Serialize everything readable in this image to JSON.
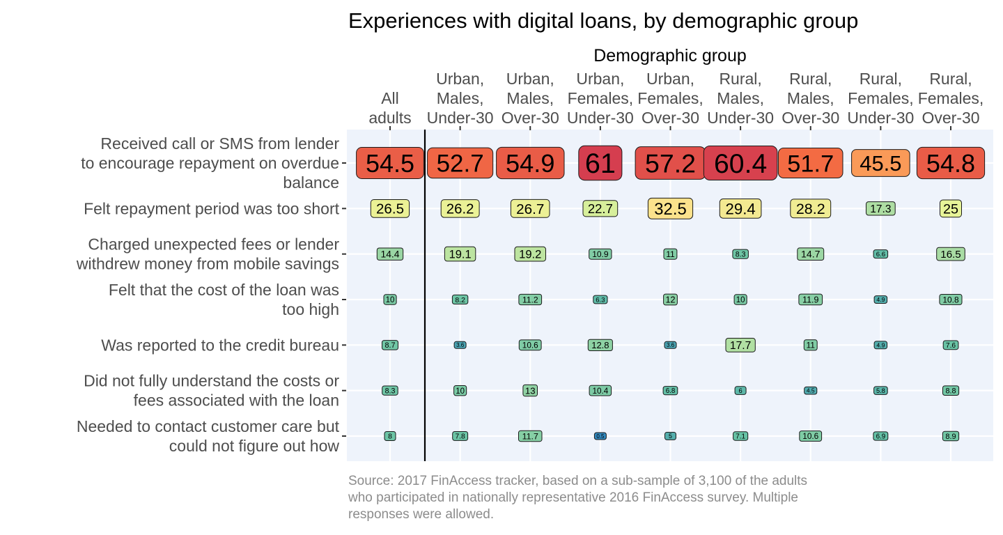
{
  "chart_data": {
    "type": "heatmap",
    "title": "Experiences with digital loans, by demographic group",
    "xlabel": "Demographic group",
    "ylabel": "",
    "categories": [
      [
        "All",
        "adults"
      ],
      [
        "Urban,",
        "Males,",
        "Under-30"
      ],
      [
        "Urban,",
        "Males,",
        "Over-30"
      ],
      [
        "Urban,",
        "Females,",
        "Under-30"
      ],
      [
        "Urban,",
        "Females,",
        "Over-30"
      ],
      [
        "Rural,",
        "Males,",
        "Under-30"
      ],
      [
        "Rural,",
        "Males,",
        "Over-30"
      ],
      [
        "Rural,",
        "Females,",
        "Under-30"
      ],
      [
        "Rural,",
        "Females,",
        "Over-30"
      ]
    ],
    "rows": [
      [
        "Received call or SMS from lender",
        "to encourage repayment on overdue",
        "balance"
      ],
      [
        "Felt repayment period was too short"
      ],
      [
        "Charged unexpected fees or lender",
        "withdrew money from mobile savings"
      ],
      [
        "Felt that the cost of the loan was",
        "too high"
      ],
      [
        "Was reported to the credit bureau"
      ],
      [
        "Did not fully understand the costs or",
        "fees associated with the loan"
      ],
      [
        "Needed to contact customer care but",
        "could not figure out how"
      ]
    ],
    "values": [
      [
        "54.5",
        "52.7",
        "54.9",
        "61",
        "57.2",
        "60.4",
        "51.7",
        "45.5",
        "54.8"
      ],
      [
        "26.5",
        "26.2",
        "26.7",
        "22.7",
        "32.5",
        "29.4",
        "28.2",
        "17.3",
        "25"
      ],
      [
        "14.4",
        "19.1",
        "19.2",
        "10.9",
        "11",
        "8.3",
        "14.7",
        "6.6",
        "16.5"
      ],
      [
        "10",
        "8.2",
        "11.2",
        "6.3",
        "12",
        "10",
        "11.9",
        "4.9",
        "10.8"
      ],
      [
        "8.7",
        "3.6",
        "10.6",
        "12.8",
        "3.6",
        "17.7",
        "11",
        "4.9",
        "7.6"
      ],
      [
        "8.3",
        "10",
        "13",
        "10.4",
        "6.8",
        "6",
        "4.5",
        "5.8",
        "8.8"
      ],
      [
        "8",
        "7.8",
        "11.7",
        "0.5",
        "5",
        "7.1",
        "10.6",
        "6.9",
        "8.9"
      ]
    ],
    "caption": [
      "Source: 2017 FinAccess tracker, based on a sub-sample of 3,100 of the adults",
      "who participated in nationally representative 2016 FinAccess survey. Multiple",
      "responses were allowed."
    ],
    "color_scale": "Spectral (reversed)",
    "grid": true,
    "legend": "none",
    "colors": {
      "panel_background": "#eef3fb",
      "grid": "#ffffff",
      "separator": "#000000"
    }
  }
}
